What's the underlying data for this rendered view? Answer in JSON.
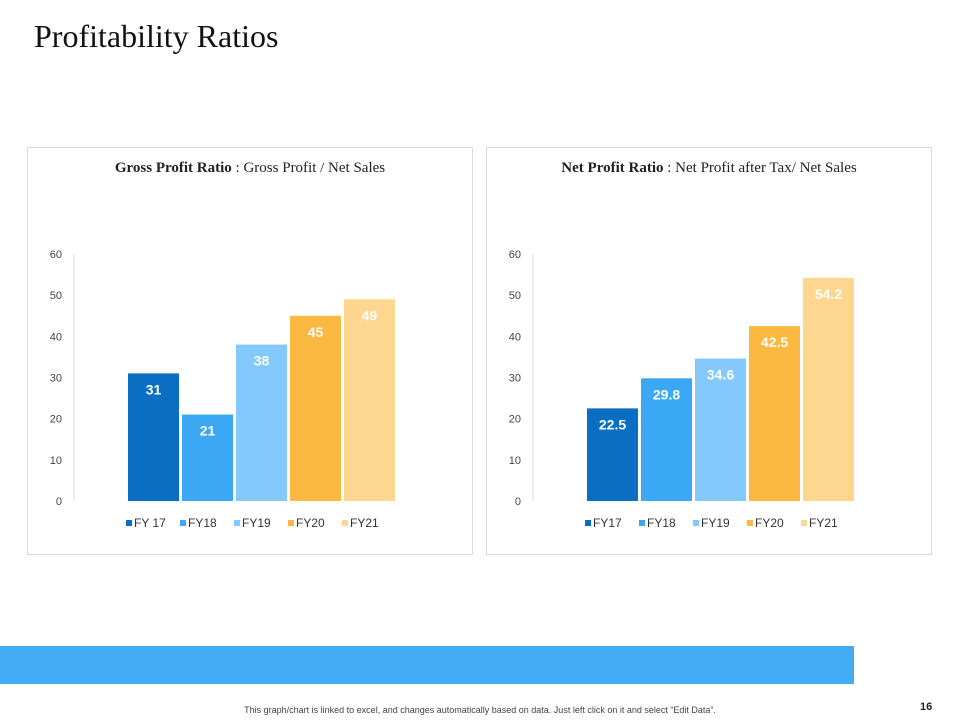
{
  "page": {
    "title": "Profitability Ratios",
    "footnote": "This graph/chart is linked to excel, and changes automatically based on data. Just left click on it and select “Edit Data”.",
    "page_number": "16"
  },
  "colors": {
    "bottom_bar": "#42adf5",
    "series": [
      "#0a6fc2",
      "#3aa8f5",
      "#84c9fb",
      "#fcb942",
      "#fdd68f"
    ]
  },
  "chart_data": [
    {
      "type": "bar",
      "title_bold": "Gross Profit Ratio",
      "title_sep": " : ",
      "title_rest": "Gross Profit / Net Sales",
      "categories": [
        "FY 17",
        "FY18",
        "FY19",
        "FY20",
        "FY21"
      ],
      "values": [
        31,
        21,
        38,
        45,
        49
      ],
      "data_labels": [
        "31",
        "21",
        "38",
        "45",
        "49"
      ],
      "yticks": [
        "0",
        "10",
        "20",
        "30",
        "40",
        "50",
        "60"
      ],
      "ylim": [
        0,
        60
      ],
      "legend_position": "bottom"
    },
    {
      "type": "bar",
      "title_bold": "Net Profit Ratio",
      "title_sep": " : ",
      "title_rest": "Net Profit after Tax/ Net Sales",
      "categories": [
        "FY17",
        "FY18",
        "FY19",
        "FY20",
        "FY21"
      ],
      "values": [
        22.5,
        29.8,
        34.6,
        42.5,
        54.2
      ],
      "data_labels": [
        "22.5",
        "29.8",
        "34.6",
        "42.5",
        "54.2"
      ],
      "yticks": [
        "0",
        "10",
        "20",
        "30",
        "40",
        "50",
        "60"
      ],
      "ylim": [
        0,
        60
      ],
      "legend_position": "bottom"
    }
  ]
}
